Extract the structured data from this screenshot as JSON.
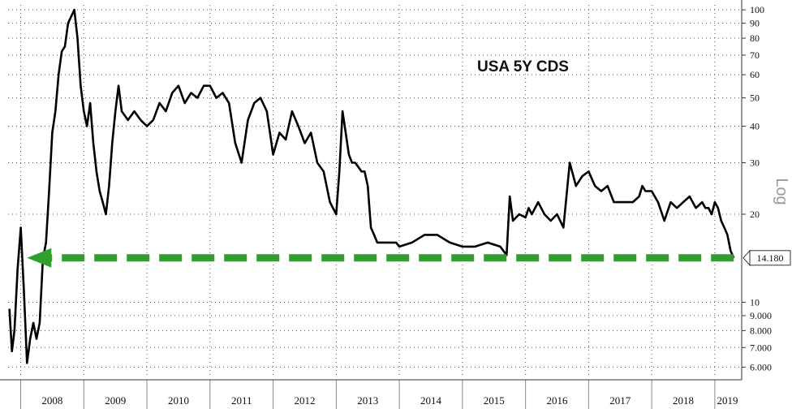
{
  "chart_data": {
    "type": "line",
    "title": "USA 5Y CDS",
    "scale_label": "Log",
    "y_scale": "log",
    "ylim": [
      5.5,
      104
    ],
    "xlim": [
      2007.8,
      2019.4
    ],
    "grid": true,
    "y_ticks": [
      {
        "value": 100,
        "label": "100"
      },
      {
        "value": 90,
        "label": "90"
      },
      {
        "value": 80,
        "label": "80"
      },
      {
        "value": 70,
        "label": "70"
      },
      {
        "value": 60,
        "label": "60"
      },
      {
        "value": 50,
        "label": "50"
      },
      {
        "value": 40,
        "label": "40"
      },
      {
        "value": 30,
        "label": "30"
      },
      {
        "value": 20,
        "label": "20"
      },
      {
        "value": 10,
        "label": "10"
      },
      {
        "value": 9,
        "label": "9.000"
      },
      {
        "value": 8,
        "label": "8.000"
      },
      {
        "value": 7,
        "label": "7.000"
      },
      {
        "value": 6,
        "label": "6.000"
      }
    ],
    "x_ticks": [
      "2008",
      "2009",
      "2010",
      "2011",
      "2012",
      "2013",
      "2014",
      "2015",
      "2016",
      "2017",
      "2018",
      "2019"
    ],
    "last_value_label": "14.180",
    "annotation": {
      "type": "dashed-arrow",
      "value": 14.18,
      "from_year": 2019.3,
      "to_year": 2008.1,
      "color": "#2ea02e"
    },
    "series": [
      {
        "color": "#000000",
        "x": [
          2007.82,
          2007.86,
          2007.9,
          2007.95,
          2008.0,
          2008.05,
          2008.1,
          2008.15,
          2008.2,
          2008.25,
          2008.3,
          2008.35,
          2008.4,
          2008.45,
          2008.5,
          2008.55,
          2008.6,
          2008.65,
          2008.7,
          2008.75,
          2008.8,
          2008.85,
          2008.9,
          2008.95,
          2009.0,
          2009.05,
          2009.1,
          2009.15,
          2009.2,
          2009.25,
          2009.3,
          2009.35,
          2009.4,
          2009.45,
          2009.5,
          2009.55,
          2009.6,
          2009.7,
          2009.8,
          2009.9,
          2010.0,
          2010.1,
          2010.2,
          2010.3,
          2010.4,
          2010.5,
          2010.6,
          2010.7,
          2010.8,
          2010.9,
          2011.0,
          2011.1,
          2011.2,
          2011.3,
          2011.4,
          2011.5,
          2011.6,
          2011.7,
          2011.8,
          2011.9,
          2012.0,
          2012.1,
          2012.2,
          2012.3,
          2012.4,
          2012.5,
          2012.6,
          2012.7,
          2012.8,
          2012.9,
          2013.0,
          2013.05,
          2013.1,
          2013.15,
          2013.2,
          2013.25,
          2013.3,
          2013.35,
          2013.4,
          2013.45,
          2013.5,
          2013.55,
          2013.6,
          2013.65,
          2013.7,
          2013.75,
          2013.8,
          2013.85,
          2013.9,
          2013.95,
          2014.0,
          2014.2,
          2014.4,
          2014.6,
          2014.8,
          2015.0,
          2015.2,
          2015.4,
          2015.6,
          2015.7,
          2015.75,
          2015.8,
          2015.9,
          2016.0,
          2016.05,
          2016.1,
          2016.2,
          2016.3,
          2016.4,
          2016.5,
          2016.6,
          2016.7,
          2016.8,
          2016.9,
          2017.0,
          2017.1,
          2017.2,
          2017.3,
          2017.4,
          2017.5,
          2017.6,
          2017.7,
          2017.8,
          2017.85,
          2017.9,
          2018.0,
          2018.1,
          2018.2,
          2018.3,
          2018.4,
          2018.5,
          2018.6,
          2018.7,
          2018.8,
          2018.85,
          2018.9,
          2018.95,
          2019.0,
          2019.05,
          2019.1,
          2019.15,
          2019.2,
          2019.25,
          2019.3
        ],
        "y": [
          9.5,
          6.8,
          8,
          13,
          18,
          11,
          6.2,
          7.5,
          8.5,
          7.5,
          8.5,
          14,
          16,
          24,
          38,
          45,
          60,
          72,
          75,
          90,
          95,
          100,
          80,
          55,
          45,
          40,
          48,
          35,
          28,
          24,
          22,
          20,
          25,
          35,
          45,
          55,
          45,
          42,
          45,
          42,
          40,
          42,
          48,
          45,
          52,
          55,
          48,
          52,
          50,
          55,
          55,
          50,
          52,
          48,
          35,
          30,
          42,
          48,
          50,
          45,
          32,
          38,
          36,
          45,
          40,
          35,
          38,
          30,
          28,
          22,
          20,
          28,
          45,
          38,
          32,
          30,
          30,
          29,
          28,
          28,
          25,
          18,
          17,
          16,
          16,
          16,
          16,
          16,
          16,
          16,
          15.5,
          16,
          17,
          17,
          16,
          15.5,
          15.5,
          16,
          15.5,
          14.5,
          23,
          19,
          20,
          19.5,
          21,
          20,
          22,
          20,
          19,
          20,
          18,
          30,
          25,
          27,
          28,
          25,
          24,
          25,
          22,
          22,
          22,
          22,
          23,
          25,
          24,
          24,
          22,
          19,
          22,
          21,
          22,
          23,
          21,
          22,
          21,
          21,
          20,
          22,
          21,
          19,
          18,
          17,
          15,
          14.18
        ]
      }
    ]
  }
}
